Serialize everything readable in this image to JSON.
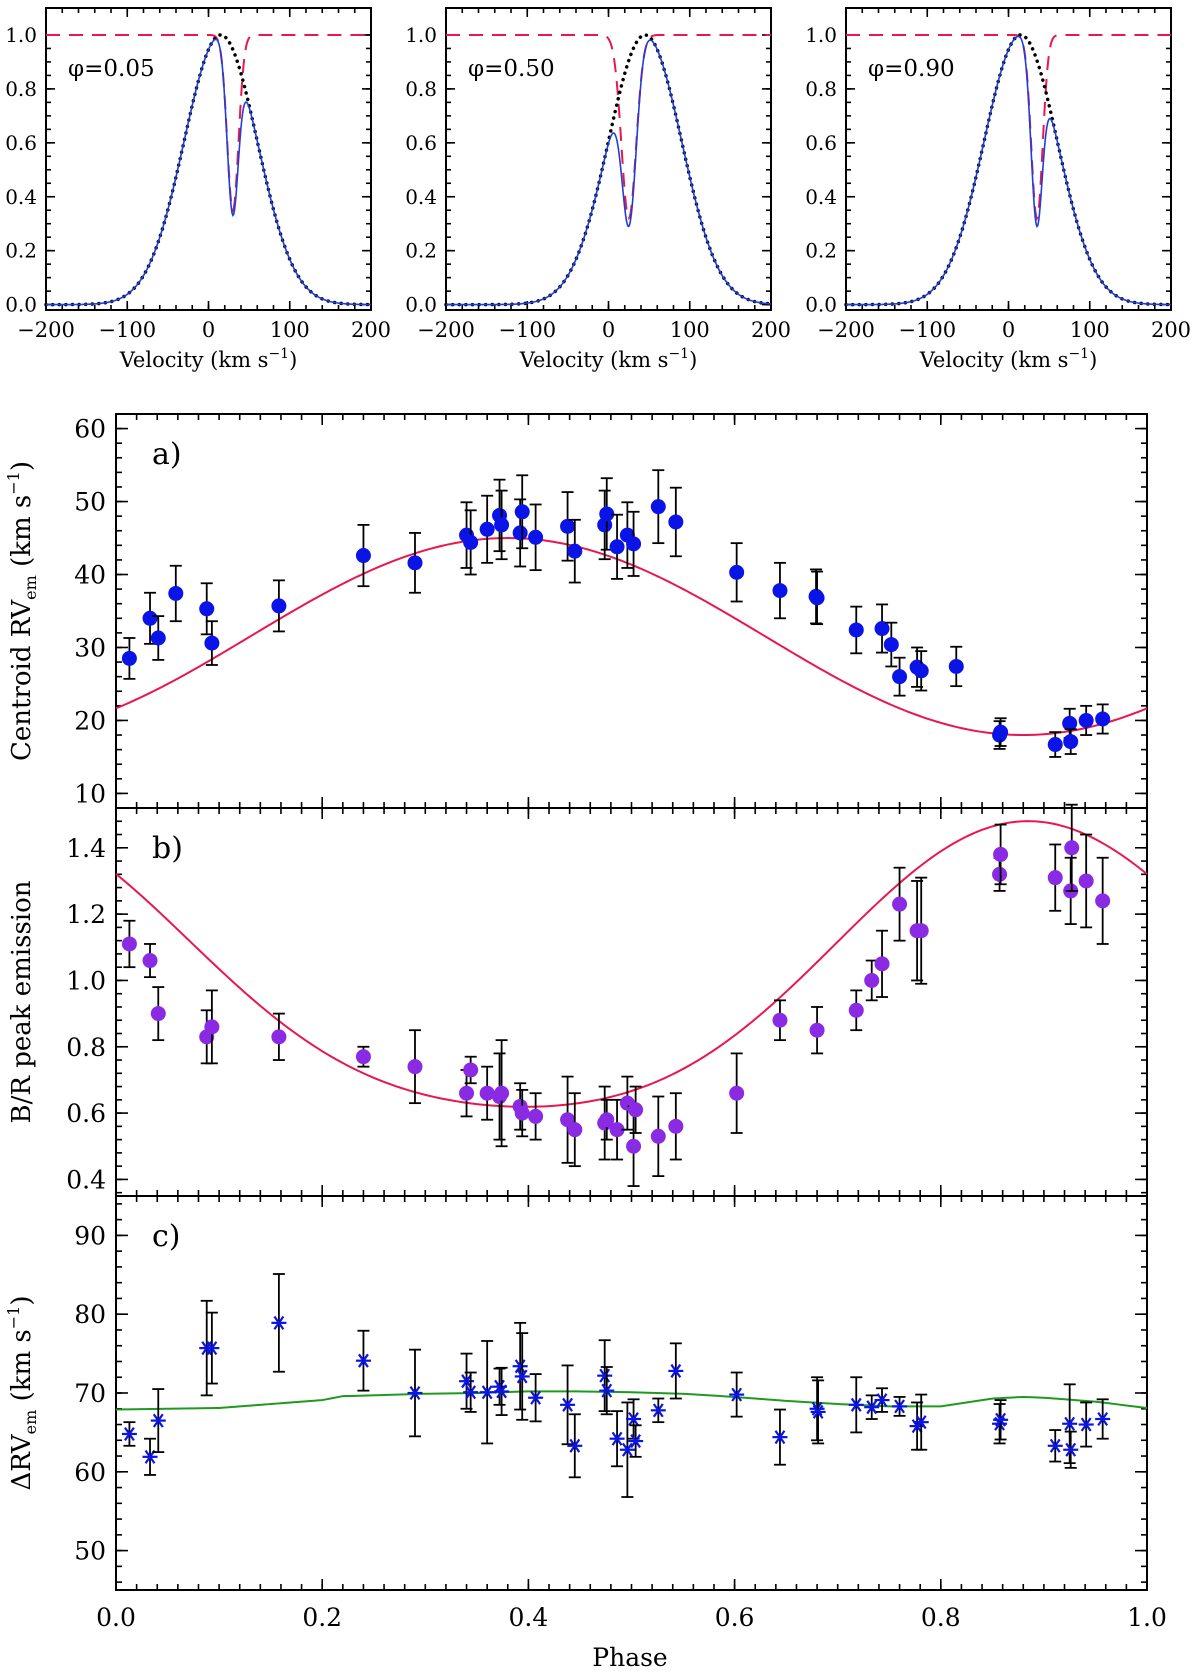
{
  "chart_data": [
    {
      "type": "line",
      "id": "profile1",
      "annotation": "φ=0.05",
      "xlabel": "Velocity (km s",
      "xlabel_sup": "−1",
      "xlabel_end": ")",
      "xlim": [
        -200,
        200
      ],
      "ylim": [
        -0.02,
        1.1
      ],
      "xticks": [
        -200,
        -100,
        0,
        100,
        200
      ],
      "xticklabels": [
        "−200",
        "−100",
        "0",
        "100",
        "200"
      ],
      "yticks": [
        0.0,
        0.2,
        0.4,
        0.6,
        0.8,
        1.0
      ],
      "yticklabels": [
        "0.0",
        "0.2",
        "0.4",
        "0.6",
        "0.8",
        "1.0"
      ],
      "series": [
        {
          "name": "intrinsic emission profile",
          "style": "dotted",
          "color": "#000000",
          "center": 15,
          "sigma": 45,
          "amplitude": 1.0
        },
        {
          "name": "absorption component",
          "style": "dashed",
          "color": "#e8174f",
          "center": 30,
          "sigma": 7,
          "depth": 0.65,
          "continuum": 1.0
        },
        {
          "name": "observed profile",
          "style": "solid",
          "color": "#1f3fd6"
        }
      ]
    },
    {
      "type": "line",
      "id": "profile2",
      "annotation": "φ=0.50",
      "xlabel": "Velocity (km s",
      "xlabel_sup": "−1",
      "xlabel_end": ")",
      "xlim": [
        -200,
        200
      ],
      "ylim": [
        -0.02,
        1.1
      ],
      "xticks": [
        -200,
        -100,
        0,
        100,
        200
      ],
      "xticklabels": [
        "−200",
        "−100",
        "0",
        "100",
        "200"
      ],
      "yticks": [
        0.0,
        0.2,
        0.4,
        0.6,
        0.8,
        1.0
      ],
      "yticklabels": [
        "0.0",
        "0.2",
        "0.4",
        "0.6",
        "0.8",
        "1.0"
      ],
      "series": [
        {
          "name": "intrinsic emission profile",
          "style": "dotted",
          "color": "#000000",
          "center": 45,
          "sigma": 45,
          "amplitude": 1.0
        },
        {
          "name": "absorption component",
          "style": "dashed",
          "color": "#e8174f",
          "center": 25,
          "sigma": 9,
          "depth": 0.68,
          "continuum": 1.0
        },
        {
          "name": "observed profile",
          "style": "solid",
          "color": "#1f3fd6"
        }
      ]
    },
    {
      "type": "line",
      "id": "profile3",
      "annotation": "φ=0.90",
      "xlabel": "Velocity (km s",
      "xlabel_sup": "−1",
      "xlabel_end": ")",
      "xlim": [
        -200,
        200
      ],
      "ylim": [
        -0.02,
        1.1
      ],
      "xticks": [
        -200,
        -100,
        0,
        100,
        200
      ],
      "xticklabels": [
        "−200",
        "−100",
        "0",
        "100",
        "200"
      ],
      "yticks": [
        0.0,
        0.2,
        0.4,
        0.6,
        0.8,
        1.0
      ],
      "yticklabels": [
        "0.0",
        "0.2",
        "0.4",
        "0.6",
        "0.8",
        "1.0"
      ],
      "series": [
        {
          "name": "intrinsic emission profile",
          "style": "dotted",
          "color": "#000000",
          "center": 15,
          "sigma": 45,
          "amplitude": 1.0
        },
        {
          "name": "absorption component",
          "style": "dashed",
          "color": "#e8174f",
          "center": 35,
          "sigma": 7,
          "depth": 0.68,
          "continuum": 1.0
        },
        {
          "name": "observed profile",
          "style": "solid",
          "color": "#1f3fd6"
        }
      ]
    },
    {
      "type": "scatter",
      "id": "panel_a",
      "panel_label": "a)",
      "ylabel": "Centroid RV",
      "ylabel_sub": "em",
      "ylabel_mid": " (km s",
      "ylabel_sup": "−1",
      "ylabel_end": ")",
      "ylim": [
        8,
        62
      ],
      "yticks": [
        10,
        20,
        30,
        40,
        50,
        60
      ],
      "yticklabels": [
        "10",
        "20",
        "30",
        "40",
        "50",
        "60"
      ],
      "marker": "circle",
      "marker_color": "#0a14e6",
      "fit": {
        "type": "sinusoid",
        "color": "#e8174f",
        "mean": 31.5,
        "amplitude": 13.5,
        "phase_of_max": 0.38
      },
      "points": [
        [
          0.013,
          28.5,
          2.8
        ],
        [
          0.033,
          34.0,
          3.5
        ],
        [
          0.041,
          31.3,
          3.0
        ],
        [
          0.058,
          37.4,
          3.8
        ],
        [
          0.088,
          35.3,
          3.5
        ],
        [
          0.093,
          30.6,
          3.0
        ],
        [
          0.158,
          35.7,
          3.5
        ],
        [
          0.24,
          42.6,
          4.2
        ],
        [
          0.29,
          41.6,
          4.1
        ],
        [
          0.34,
          45.4,
          4.5
        ],
        [
          0.344,
          44.4,
          4.4
        ],
        [
          0.36,
          46.2,
          4.6
        ],
        [
          0.372,
          48.1,
          4.9
        ],
        [
          0.374,
          46.8,
          4.7
        ],
        [
          0.392,
          45.7,
          4.6
        ],
        [
          0.394,
          48.6,
          5.0
        ],
        [
          0.407,
          45.1,
          4.5
        ],
        [
          0.438,
          46.6,
          4.7
        ],
        [
          0.445,
          43.2,
          4.3
        ],
        [
          0.474,
          46.8,
          4.7
        ],
        [
          0.476,
          48.3,
          4.9
        ],
        [
          0.486,
          43.8,
          4.4
        ],
        [
          0.496,
          45.4,
          4.5
        ],
        [
          0.502,
          44.2,
          4.4
        ],
        [
          0.526,
          49.3,
          5.0
        ],
        [
          0.543,
          47.2,
          4.7
        ],
        [
          0.602,
          40.3,
          4.0
        ],
        [
          0.644,
          37.8,
          3.8
        ],
        [
          0.679,
          37.0,
          3.7
        ],
        [
          0.68,
          36.8,
          3.6
        ],
        [
          0.718,
          32.4,
          3.2
        ],
        [
          0.743,
          32.6,
          3.3
        ],
        [
          0.752,
          30.4,
          3.0
        ],
        [
          0.76,
          26.0,
          2.6
        ],
        [
          0.777,
          27.3,
          2.7
        ],
        [
          0.781,
          26.8,
          2.7
        ],
        [
          0.815,
          27.4,
          2.7
        ],
        [
          0.857,
          18.0,
          1.9
        ],
        [
          0.858,
          18.4,
          1.9
        ],
        [
          0.911,
          16.7,
          1.7
        ],
        [
          0.925,
          19.6,
          2.0
        ],
        [
          0.926,
          17.1,
          1.7
        ],
        [
          0.941,
          20.0,
          2.0
        ],
        [
          0.957,
          20.2,
          2.0
        ]
      ]
    },
    {
      "type": "scatter",
      "id": "panel_b",
      "panel_label": "b)",
      "ylabel": "B/R peak emission",
      "ylim": [
        0.35,
        1.52
      ],
      "yticks": [
        0.4,
        0.6,
        0.8,
        1.0,
        1.2,
        1.4
      ],
      "yticklabels": [
        "0.4",
        "0.6",
        "0.8",
        "1.0",
        "1.2",
        "1.4"
      ],
      "marker": "circle",
      "marker_color": "#8a2ae3",
      "fit": {
        "type": "skewed_sinusoid",
        "color": "#e8174f",
        "mean": 1.05,
        "amplitude": 0.43,
        "second_harmonic": 0.12,
        "phase_of_max": 0.88
      },
      "points": [
        [
          0.013,
          1.11,
          0.07
        ],
        [
          0.033,
          1.06,
          0.05
        ],
        [
          0.041,
          0.9,
          0.08
        ],
        [
          0.088,
          0.83,
          0.08
        ],
        [
          0.093,
          0.86,
          0.11
        ],
        [
          0.158,
          0.83,
          0.07
        ],
        [
          0.24,
          0.77,
          0.03
        ],
        [
          0.29,
          0.74,
          0.11
        ],
        [
          0.34,
          0.66,
          0.07
        ],
        [
          0.344,
          0.73,
          0.04
        ],
        [
          0.36,
          0.66,
          0.08
        ],
        [
          0.372,
          0.65,
          0.13
        ],
        [
          0.374,
          0.66,
          0.16
        ],
        [
          0.392,
          0.62,
          0.07
        ],
        [
          0.394,
          0.6,
          0.07
        ],
        [
          0.407,
          0.59,
          0.07
        ],
        [
          0.438,
          0.58,
          0.13
        ],
        [
          0.445,
          0.55,
          0.11
        ],
        [
          0.474,
          0.57,
          0.11
        ],
        [
          0.476,
          0.58,
          0.06
        ],
        [
          0.486,
          0.55,
          0.09
        ],
        [
          0.496,
          0.63,
          0.08
        ],
        [
          0.502,
          0.5,
          0.12
        ],
        [
          0.504,
          0.61,
          0.07
        ],
        [
          0.526,
          0.53,
          0.12
        ],
        [
          0.543,
          0.56,
          0.1
        ],
        [
          0.602,
          0.66,
          0.12
        ],
        [
          0.644,
          0.88,
          0.06
        ],
        [
          0.68,
          0.85,
          0.07
        ],
        [
          0.718,
          0.91,
          0.06
        ],
        [
          0.733,
          1.0,
          0.06
        ],
        [
          0.743,
          1.05,
          0.1
        ],
        [
          0.76,
          1.23,
          0.11
        ],
        [
          0.777,
          1.15,
          0.15
        ],
        [
          0.781,
          1.15,
          0.16
        ],
        [
          0.857,
          1.32,
          0.05
        ],
        [
          0.858,
          1.38,
          0.09
        ],
        [
          0.911,
          1.31,
          0.1
        ],
        [
          0.926,
          1.27,
          0.1
        ],
        [
          0.927,
          1.4,
          0.13
        ],
        [
          0.941,
          1.3,
          0.14
        ],
        [
          0.957,
          1.24,
          0.13
        ]
      ]
    },
    {
      "type": "scatter",
      "id": "panel_c",
      "panel_label": "c)",
      "ylabel": "ΔRV",
      "ylabel_sub": "em",
      "ylabel_mid": " (km s",
      "ylabel_sup": "−1",
      "ylabel_end": ")",
      "ylim": [
        45,
        95
      ],
      "yticks": [
        50,
        60,
        70,
        80,
        90
      ],
      "yticklabels": [
        "50",
        "60",
        "70",
        "80",
        "90"
      ],
      "marker": "asterisk",
      "marker_color": "#0a14e6",
      "fit": {
        "type": "model",
        "color": "#1f9a1f",
        "x": [
          0.0,
          0.1,
          0.2,
          0.22,
          0.25,
          0.3,
          0.35,
          0.4,
          0.45,
          0.5,
          0.55,
          0.6,
          0.65,
          0.7,
          0.75,
          0.8,
          0.85,
          0.88,
          0.9,
          0.95,
          1.0
        ],
        "y": [
          67.9,
          68.1,
          69.1,
          69.6,
          69.7,
          69.9,
          70.0,
          70.2,
          70.2,
          70.1,
          69.9,
          69.5,
          69.0,
          68.6,
          68.3,
          68.3,
          69.3,
          69.5,
          69.4,
          68.9,
          68.1
        ]
      },
      "points": [
        [
          0.013,
          64.8,
          1.5
        ],
        [
          0.033,
          61.9,
          2.3
        ],
        [
          0.041,
          66.5,
          4.0
        ],
        [
          0.088,
          75.7,
          6.0
        ],
        [
          0.093,
          75.7,
          4.5
        ],
        [
          0.158,
          78.9,
          6.2
        ],
        [
          0.24,
          74.1,
          3.8
        ],
        [
          0.29,
          70.0,
          5.5
        ],
        [
          0.34,
          71.5,
          3.5
        ],
        [
          0.344,
          70.1,
          2.5
        ],
        [
          0.36,
          70.1,
          6.5
        ],
        [
          0.372,
          70.8,
          2.3
        ],
        [
          0.374,
          70.2,
          3.0
        ],
        [
          0.392,
          73.4,
          5.5
        ],
        [
          0.394,
          72.1,
          5.5
        ],
        [
          0.407,
          69.4,
          3.0
        ],
        [
          0.438,
          68.5,
          5.0
        ],
        [
          0.445,
          63.3,
          4.0
        ],
        [
          0.474,
          72.2,
          4.5
        ],
        [
          0.476,
          70.3,
          3.0
        ],
        [
          0.486,
          64.2,
          3.5
        ],
        [
          0.496,
          62.8,
          6.0
        ],
        [
          0.502,
          66.7,
          2.5
        ],
        [
          0.504,
          63.9,
          2.0
        ],
        [
          0.526,
          67.8,
          1.5
        ],
        [
          0.543,
          72.8,
          3.5
        ],
        [
          0.602,
          69.8,
          2.8
        ],
        [
          0.644,
          64.4,
          3.5
        ],
        [
          0.68,
          68.0,
          4.0
        ],
        [
          0.681,
          67.6,
          4.0
        ],
        [
          0.718,
          68.5,
          3.5
        ],
        [
          0.733,
          68.2,
          1.5
        ],
        [
          0.743,
          69.1,
          1.5
        ],
        [
          0.76,
          68.3,
          1.2
        ],
        [
          0.777,
          65.8,
          3.0
        ],
        [
          0.781,
          66.3,
          3.5
        ],
        [
          0.857,
          66.1,
          2.5
        ],
        [
          0.858,
          66.6,
          2.5
        ],
        [
          0.911,
          63.3,
          2.0
        ],
        [
          0.925,
          66.1,
          5.0
        ],
        [
          0.926,
          62.8,
          2.3
        ],
        [
          0.941,
          66.0,
          2.8
        ],
        [
          0.957,
          66.7,
          2.5
        ]
      ]
    }
  ],
  "shared_x_axis": {
    "xlabel": "Phase",
    "xlim": [
      0.0,
      1.0
    ],
    "xticks": [
      0.0,
      0.2,
      0.4,
      0.6,
      0.8,
      1.0
    ],
    "xticklabels": [
      "0.0",
      "0.2",
      "0.4",
      "0.6",
      "0.8",
      "1.0"
    ]
  }
}
